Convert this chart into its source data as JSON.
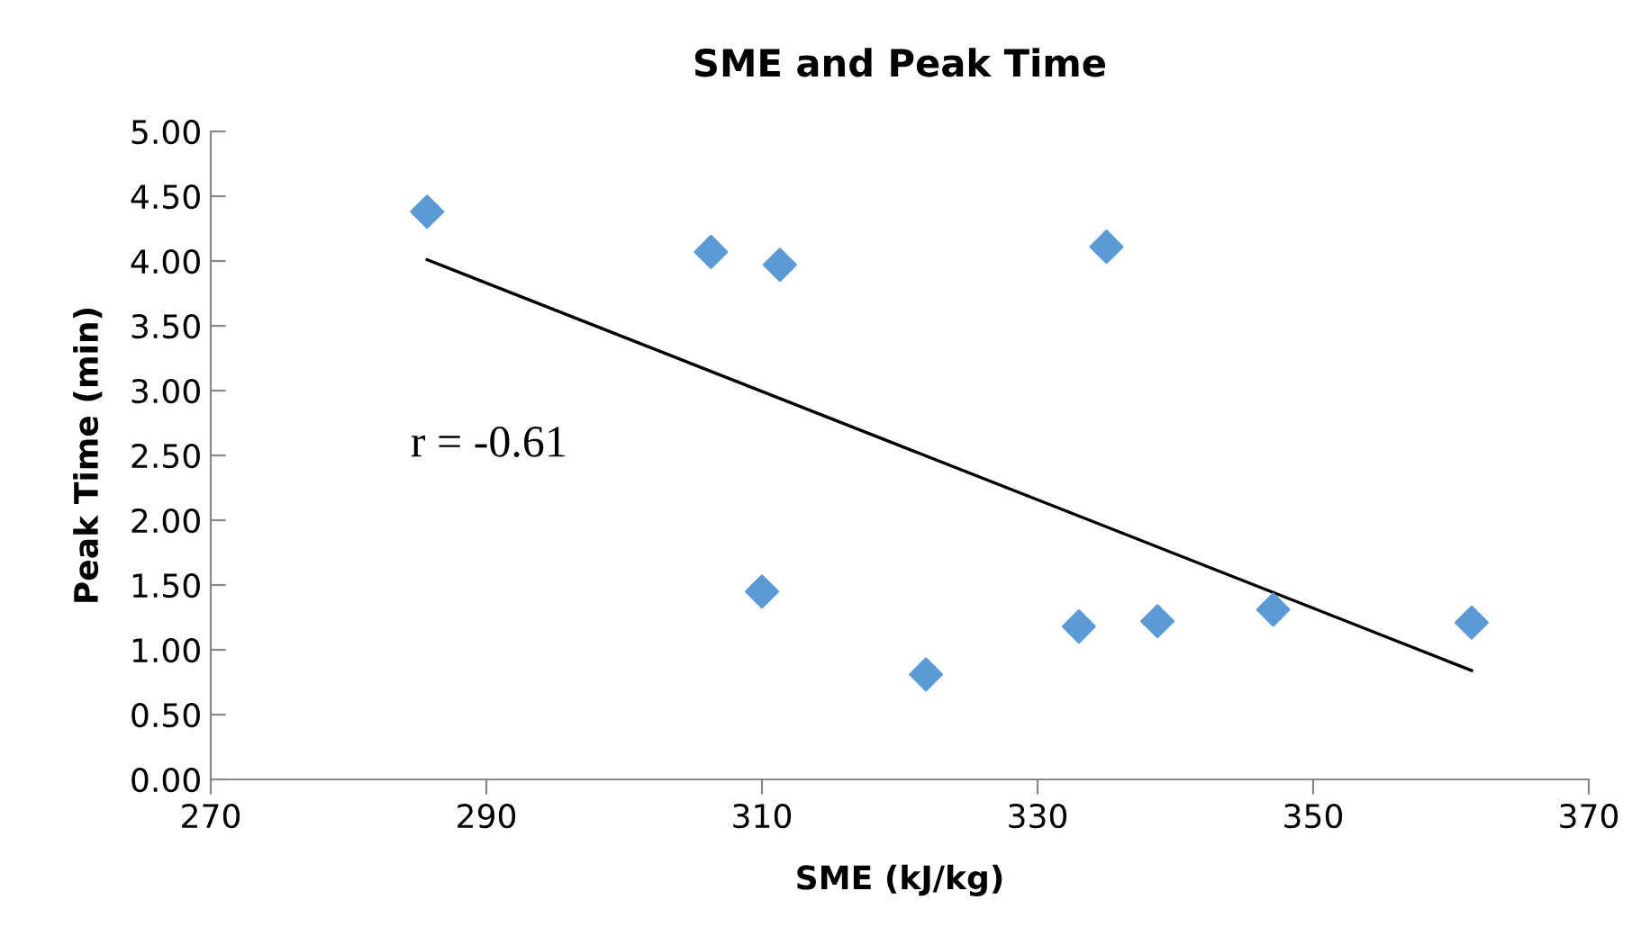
{
  "chart_data": {
    "type": "scatter",
    "title": "SME and Peak Time",
    "xlabel": "SME (kJ/kg)",
    "ylabel": "Peak Time (min)",
    "x": [
      285.7,
      306.3,
      311.3,
      310.0,
      321.9,
      333.0,
      338.7,
      335.0,
      347.1,
      361.5
    ],
    "series": [
      {
        "color": "#5b9bd5",
        "marker": "diamond",
        "values": [
          4.38,
          4.07,
          3.97,
          1.45,
          0.81,
          1.18,
          1.22,
          4.11,
          1.31,
          1.21
        ]
      },
      {
        "type": "line",
        "color": "#000000",
        "marker": "none",
        "x": [
          285.7,
          361.5
        ],
        "values": [
          4.01,
          0.84
        ]
      }
    ],
    "annotations": [
      "r = -0.61"
    ],
    "xlim": [
      270,
      370
    ],
    "xticks": [
      270,
      290,
      310,
      330,
      350,
      370
    ],
    "ylim": [
      0,
      5
    ],
    "yticks": [
      {
        "value": 0,
        "label": "0.00"
      },
      {
        "value": 0.5,
        "label": "0.50"
      },
      {
        "value": 1,
        "label": "1.00"
      },
      {
        "value": 1.5,
        "label": "1.50"
      },
      {
        "value": 2,
        "label": "2.00"
      },
      {
        "value": 2.5,
        "label": "2.50"
      },
      {
        "value": 3,
        "label": "3.00"
      },
      {
        "value": 3.5,
        "label": "3.50"
      },
      {
        "value": 4,
        "label": "4.00"
      },
      {
        "value": 4.5,
        "label": "4.50"
      },
      {
        "value": 5,
        "label": "5.00"
      }
    ],
    "grid": false,
    "legend": false
  }
}
